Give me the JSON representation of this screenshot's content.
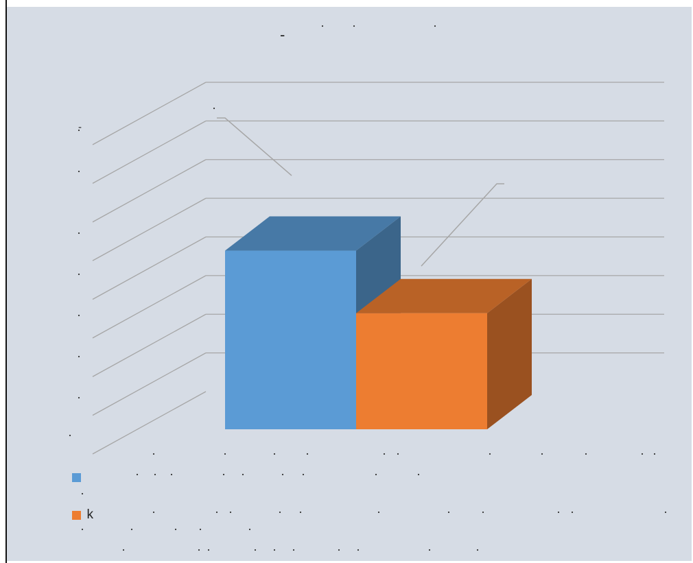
{
  "chart_data": {
    "type": "bar",
    "title": "-",
    "subtitle": "",
    "xlabel": "",
    "ylabel": "",
    "categories": [
      ""
    ],
    "series": [
      {
        "name": "",
        "values": [
          6.0
        ],
        "color": "#5b9bd5"
      },
      {
        "name": "k",
        "values": [
          3.9
        ],
        "color": "#ed7d31"
      }
    ],
    "ylim": [
      0,
      8
    ],
    "yticks": [
      "",
      "",
      "",
      "",
      "",
      "",
      "",
      "",
      "-"
    ],
    "grid": true,
    "three_d": true,
    "legend_position": "bottom-left"
  }
}
